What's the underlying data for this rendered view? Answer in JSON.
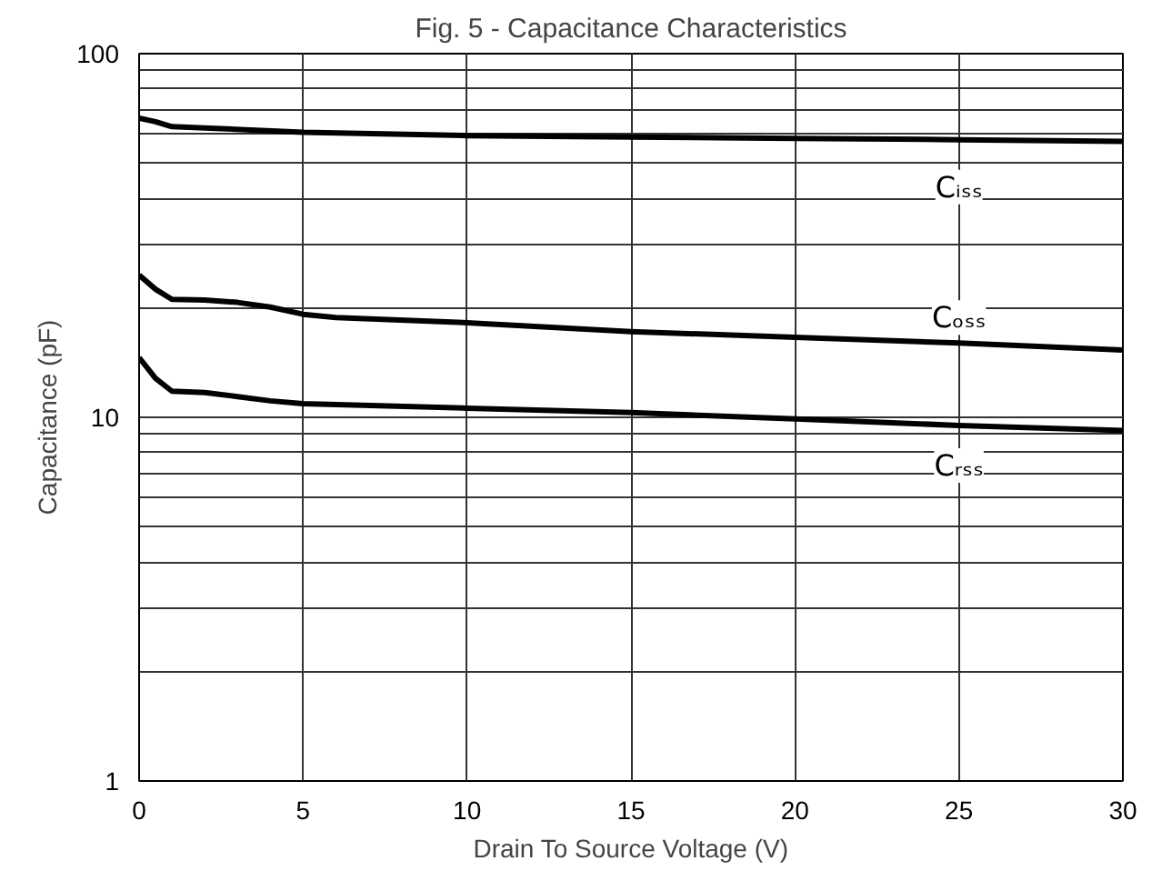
{
  "chart_data": {
    "type": "line",
    "title": "Fig. 5 - Capacitance Characteristics",
    "xlabel": "Drain To Source Voltage (V)",
    "ylabel": "Capacitance (pF)",
    "log": "y",
    "grid": true,
    "marker": "none",
    "line_style": "solid",
    "xlim": [
      0,
      30
    ],
    "xticks": [
      0,
      5,
      10,
      15,
      20,
      25,
      30
    ],
    "ylim": [
      1,
      100
    ],
    "yticks": [
      1,
      {
        "value": 2,
        "label": null
      },
      {
        "value": 3,
        "label": null
      },
      {
        "value": 4,
        "label": null
      },
      {
        "value": 5,
        "label": null
      },
      {
        "value": 6,
        "label": null
      },
      {
        "value": 7,
        "label": null
      },
      {
        "value": 8,
        "label": null
      },
      {
        "value": 9,
        "label": null
      },
      10,
      {
        "value": 20,
        "label": null
      },
      {
        "value": 30,
        "label": null
      },
      {
        "value": 40,
        "label": null
      },
      {
        "value": 50,
        "label": null
      },
      {
        "value": 60,
        "label": null
      },
      {
        "value": 70,
        "label": null
      },
      {
        "value": 80,
        "label": null
      },
      {
        "value": 90,
        "label": null
      },
      100
    ],
    "series": [
      {
        "name": "Cᵢₛₛ",
        "color": "#000000",
        "x": [
          0,
          0.5,
          1,
          2,
          5,
          10,
          15,
          20,
          25,
          30
        ],
        "values": [
          66.5,
          65,
          63,
          62.5,
          60.8,
          59.5,
          59,
          58.5,
          58,
          57.4
        ]
      },
      {
        "name": "Cₒₛₛ",
        "color": "#000000",
        "x": [
          0,
          0.5,
          1,
          2,
          3,
          4,
          5,
          6,
          10,
          15,
          20,
          25,
          30
        ],
        "values": [
          24.6,
          22.5,
          21.1,
          21,
          20.7,
          20.1,
          19.2,
          18.8,
          18.2,
          17.2,
          16.6,
          16,
          15.3
        ]
      },
      {
        "name": "Cᵣₛₛ",
        "color": "#000000",
        "x": [
          0,
          0.5,
          1,
          2,
          3,
          4,
          5,
          10,
          15,
          20,
          25,
          30
        ],
        "values": [
          14.6,
          12.8,
          11.8,
          11.7,
          11.4,
          11.1,
          10.9,
          10.6,
          10.3,
          9.9,
          9.5,
          9.2
        ]
      }
    ]
  }
}
